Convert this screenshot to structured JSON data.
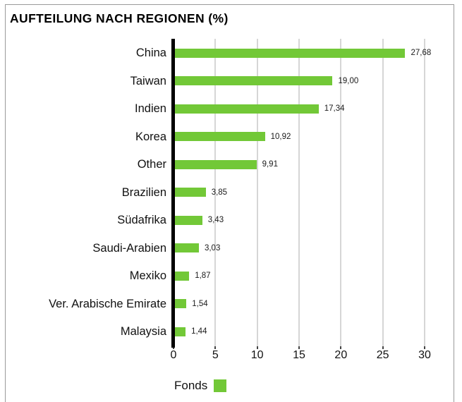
{
  "frame": {
    "border_color": "#9a9a9a"
  },
  "chart": {
    "title": "AUFTEILUNG NACH REGIONEN (%)",
    "legend_label": "Fonds",
    "bar_color": "#72c837",
    "grid_color": "#d6d6d6",
    "axis_color": "#000000"
  },
  "chart_data": {
    "type": "bar",
    "orientation": "horizontal",
    "title": "AUFTEILUNG NACH REGIONEN (%)",
    "series_name": "Fonds",
    "categories": [
      "China",
      "Taiwan",
      "Indien",
      "Korea",
      "Other",
      "Brazilien",
      "Südafrika",
      "Saudi-Arabien",
      "Mexiko",
      "Ver. Arabische Emirate",
      "Malaysia"
    ],
    "values": [
      27.68,
      19.0,
      17.34,
      10.92,
      9.91,
      3.85,
      3.43,
      3.03,
      1.87,
      1.54,
      1.44
    ],
    "value_labels": [
      "27,68",
      "19,00",
      "17,34",
      "10,92",
      "9,91",
      "3,85",
      "3,43",
      "3,03",
      "1,87",
      "1,54",
      "1,44"
    ],
    "xlabel": "",
    "ylabel": "",
    "xlim": [
      0,
      30
    ],
    "xticks": [
      0,
      5,
      10,
      15,
      20,
      25,
      30
    ],
    "xtick_labels": [
      "0",
      "5",
      "10",
      "15",
      "20",
      "25",
      "30"
    ],
    "grid": true,
    "legend_position": "bottom-left",
    "unit": "%"
  }
}
